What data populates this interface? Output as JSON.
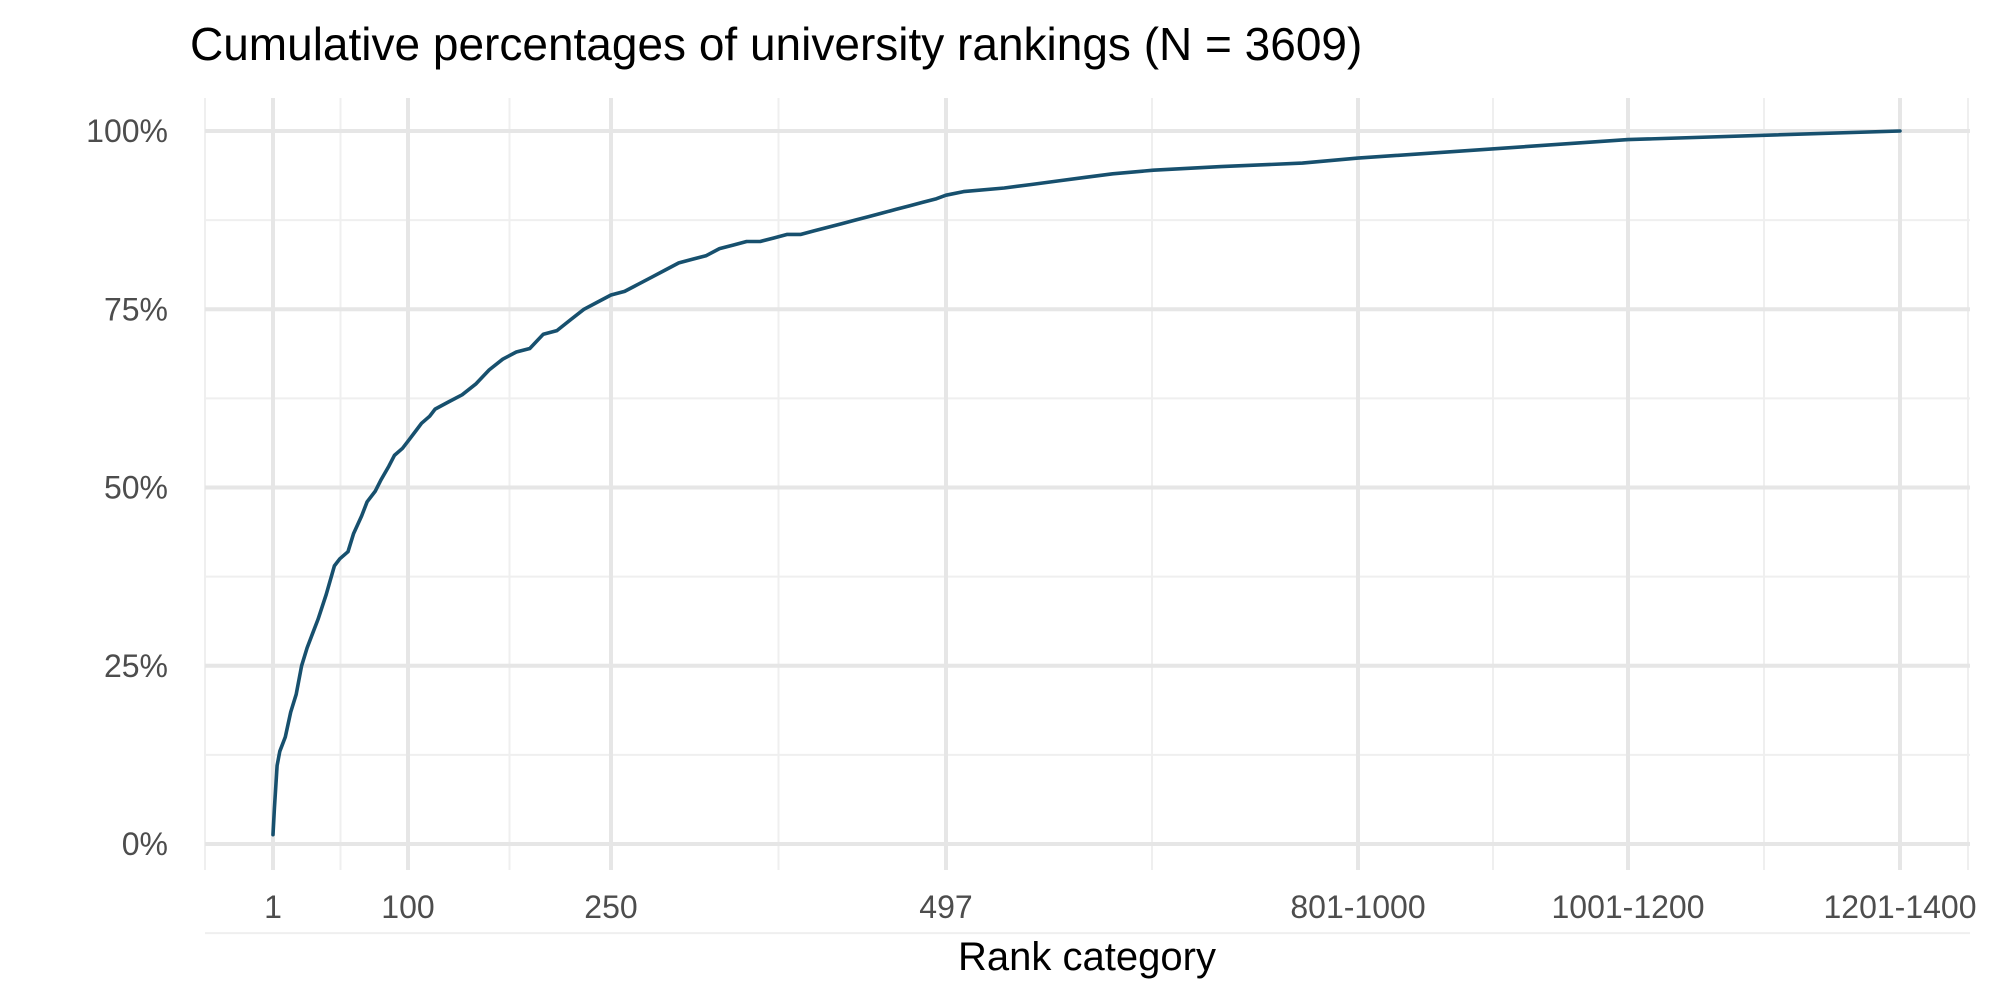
{
  "chart_data": {
    "type": "line",
    "title": "Cumulative percentages of university rankings (N = 3609)",
    "xlabel": "Rank category",
    "ylabel": "",
    "x_scale": "categorical",
    "x_tick_labels": [
      "1",
      "100",
      "250",
      "497",
      "801-1000",
      "1001-1200",
      "1201-1400"
    ],
    "y_tick_labels": [
      "0%",
      "25%",
      "50%",
      "75%",
      "100%"
    ],
    "y_ticks": [
      0,
      25,
      50,
      75,
      100
    ],
    "ylim": [
      -3,
      101
    ],
    "grid": true,
    "legend": "none",
    "line_color": "#17506e",
    "series": [
      {
        "x": [
          1,
          2,
          4,
          6,
          10,
          14,
          18,
          22,
          26,
          30,
          34,
          40,
          46,
          50,
          56,
          60,
          66,
          70,
          76,
          80,
          86,
          90,
          96,
          100,
          106,
          110,
          116,
          120,
          130,
          140,
          150,
          160,
          170,
          180,
          190,
          200,
          210,
          220,
          230,
          240,
          250,
          260,
          270,
          280,
          290,
          300,
          310,
          320,
          330,
          340,
          350,
          360,
          370,
          380,
          390,
          400,
          410,
          420,
          430,
          440,
          450,
          460,
          470,
          480,
          490,
          497,
          510,
          540,
          560,
          580,
          600,
          620,
          650,
          700,
          760,
          801,
          1001,
          1201
        ],
        "y": [
          1.3,
          5,
          11,
          13,
          15,
          18.5,
          21,
          25,
          27.5,
          29.5,
          31.5,
          35,
          39,
          40,
          41,
          43.5,
          46,
          48,
          49.5,
          51,
          53,
          54.5,
          55.5,
          56.5,
          58,
          59,
          60,
          61,
          62,
          63,
          64.5,
          66.5,
          68,
          69,
          69.5,
          71.5,
          72,
          73.5,
          75,
          76,
          77,
          77.5,
          78.5,
          79.5,
          80.5,
          81.5,
          82,
          82.5,
          83.5,
          84,
          84.5,
          84.5,
          85,
          85.5,
          85.5,
          86,
          86.5,
          87,
          87.5,
          88,
          88.5,
          89,
          89.5,
          90,
          90.5,
          91,
          91.5,
          92,
          92.5,
          93,
          93.5,
          94,
          94.5,
          95,
          95.5,
          96.2,
          98.8,
          100
        ]
      }
    ]
  }
}
